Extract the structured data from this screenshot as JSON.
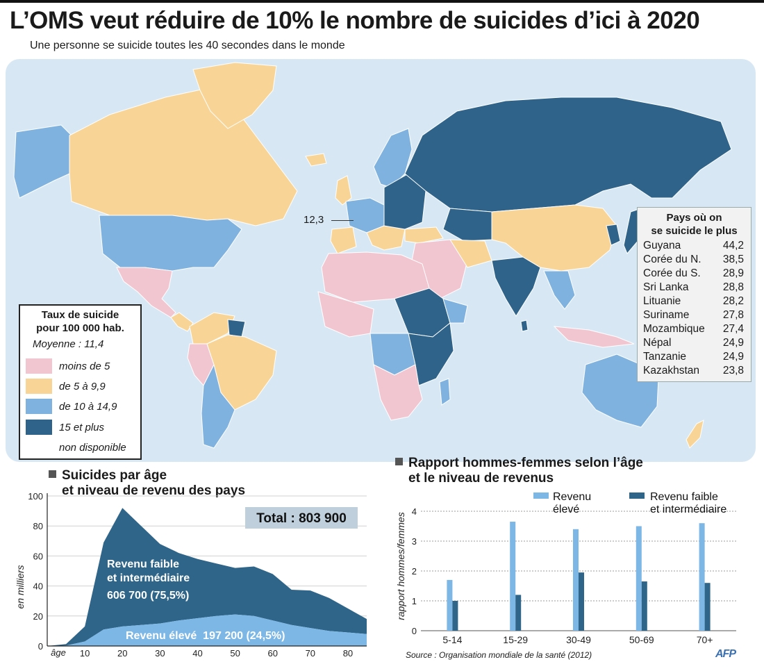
{
  "title": "L’OMS veut réduire de 10% le nombre de suicides d’ici à 2020",
  "subtitle": "Une personne se suicide toutes les 40 secondes dans le monde",
  "colors": {
    "ocean": "#d7e8f4",
    "less_than_5": "#f2c6d1",
    "five_to_9_9": "#f8d596",
    "ten_to_14_9": "#7fb2de",
    "fifteen_plus": "#2f6389",
    "not_available": "#ffffff",
    "high_income": "#7cb7e6",
    "low_mid_income": "#2f6589"
  },
  "map": {
    "callout_value": "12,3",
    "legend": {
      "title_line1": "Taux de suicide",
      "title_line2": "pour 100 000 hab.",
      "average": "Moyenne : 11,4",
      "items": [
        {
          "label": "moins de 5",
          "color": "#f2c6d1"
        },
        {
          "label": "de 5 à 9,9",
          "color": "#f8d596"
        },
        {
          "label": "de 10 à 14,9",
          "color": "#7fb2de"
        },
        {
          "label": "15 et plus",
          "color": "#2f6389"
        },
        {
          "label": "non disponible",
          "color": "#ffffff"
        }
      ]
    },
    "top_countries": {
      "title_line1": "Pays où on",
      "title_line2": "se suicide le plus",
      "rows": [
        {
          "country": "Guyana",
          "value": "44,2"
        },
        {
          "country": "Corée du N.",
          "value": "38,5"
        },
        {
          "country": "Corée du S.",
          "value": "28,9"
        },
        {
          "country": "Sri Lanka",
          "value": "28,8"
        },
        {
          "country": "Lituanie",
          "value": "28,2"
        },
        {
          "country": "Suriname",
          "value": "27,8"
        },
        {
          "country": "Mozambique",
          "value": "27,4"
        },
        {
          "country": "Népal",
          "value": "24,9"
        },
        {
          "country": "Tanzanie",
          "value": "24,9"
        },
        {
          "country": "Kazakhstan",
          "value": "23,8"
        }
      ]
    }
  },
  "area_section": {
    "title_line1": "Suicides par âge",
    "title_line2": "et niveau de revenu des pays"
  },
  "bar_section": {
    "title_line1": "Rapport hommes-femmes selon l’âge",
    "title_line2": "et le niveau de revenus"
  },
  "chart_data": [
    {
      "type": "area",
      "ylabel": "en milliers",
      "xlabel": "âge",
      "xlim": [
        0,
        85
      ],
      "ylim": [
        0,
        100
      ],
      "x_ticks": [
        10,
        20,
        30,
        40,
        50,
        60,
        70,
        80
      ],
      "y_ticks": [
        0,
        20,
        40,
        60,
        80,
        100
      ],
      "total_label": "Total : 803 900",
      "x": [
        0,
        5,
        10,
        15,
        20,
        25,
        30,
        35,
        40,
        45,
        50,
        55,
        60,
        65,
        70,
        75,
        80,
        85
      ],
      "series": [
        {
          "name": "Revenu élevé",
          "label_line1": "Revenu élevé  197 200 (24,5%)",
          "values": [
            0,
            0.3,
            3,
            11,
            13,
            14,
            15,
            17,
            18.5,
            20,
            21,
            20,
            17,
            14,
            12,
            10,
            9,
            8
          ]
        },
        {
          "name": "Revenu faible et intermédiaire",
          "label_line1": "Revenu faible",
          "label_line2": "et intermédiaire",
          "label_line3": "606 700 (75,5%)",
          "values": [
            0,
            1,
            10,
            58,
            79,
            66,
            53,
            45,
            39.5,
            35,
            31,
            33,
            31,
            23.5,
            25,
            22,
            16,
            10
          ]
        }
      ]
    },
    {
      "type": "bar",
      "ylabel": "rapport hommes/femmes",
      "ylim": [
        0,
        4
      ],
      "y_ticks": [
        0,
        1,
        2,
        3,
        4
      ],
      "categories": [
        "5-14",
        "15-29",
        "30-49",
        "50-69",
        "70+"
      ],
      "series": [
        {
          "name": "Revenu élevé",
          "legend_line1": "Revenu",
          "legend_line2": "élevé",
          "values": [
            1.7,
            3.65,
            3.4,
            3.5,
            3.6
          ]
        },
        {
          "name": "Revenu faible et intermédiaire",
          "legend_line1": "Revenu faible",
          "legend_line2": "et intermédiaire",
          "values": [
            1.0,
            1.2,
            1.95,
            1.65,
            1.6
          ]
        }
      ]
    }
  ],
  "footer": {
    "source": "Source : Organisation mondiale de la santé (2012)",
    "credit": "AFP"
  }
}
